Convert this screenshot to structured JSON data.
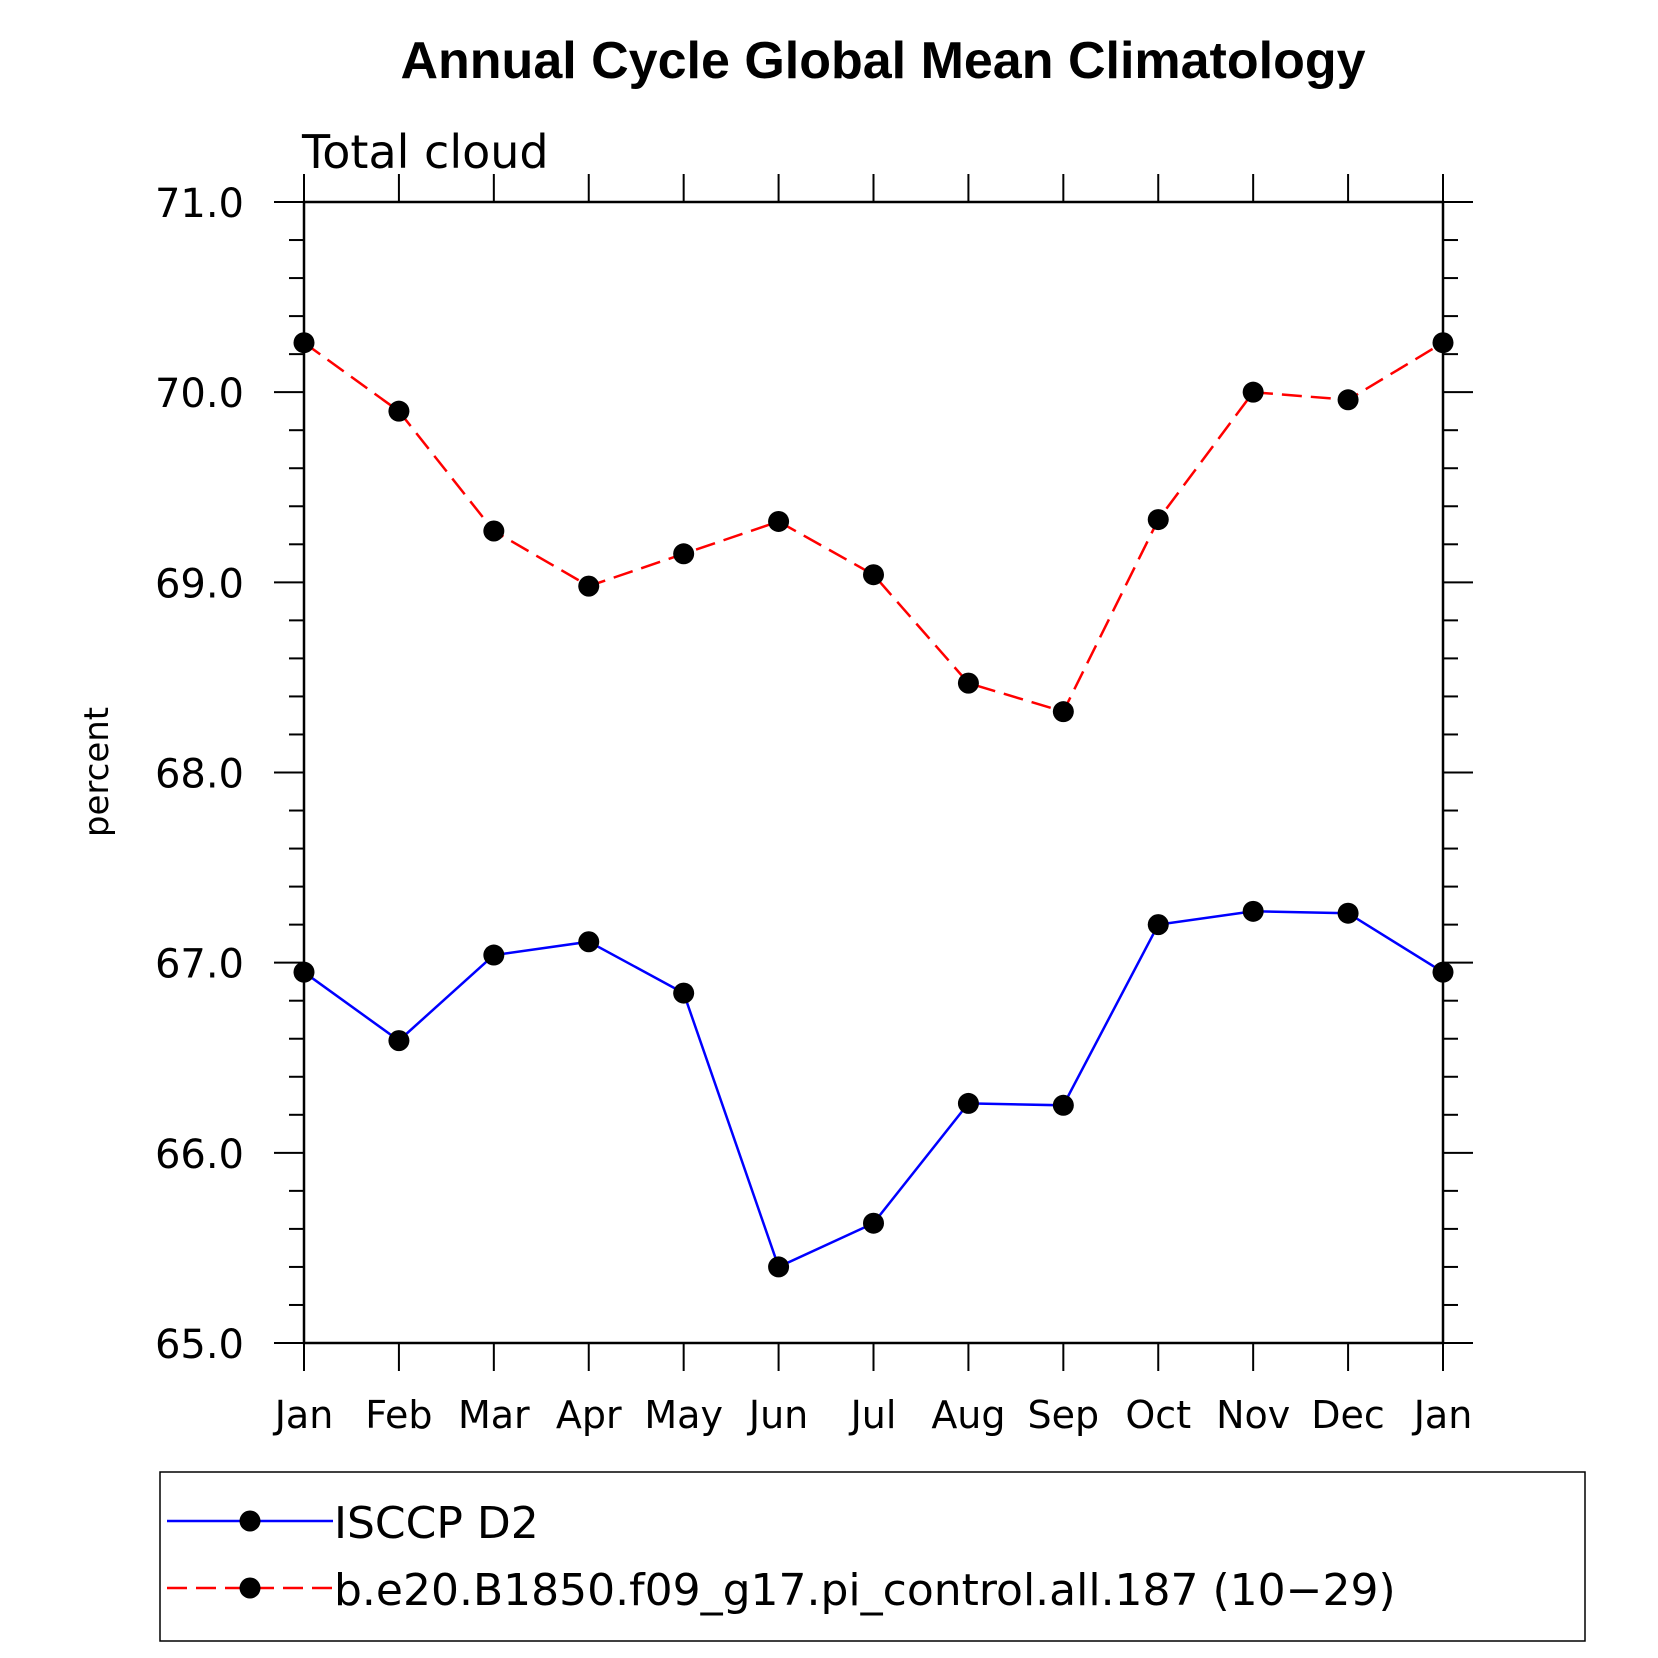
{
  "chart_data": {
    "type": "line",
    "title": "Annual Cycle Global Mean Climatology",
    "subtitle": "Total cloud",
    "xlabel": "",
    "ylabel": "percent",
    "categories": [
      "Jan",
      "Feb",
      "Mar",
      "Apr",
      "May",
      "Jun",
      "Jul",
      "Aug",
      "Sep",
      "Oct",
      "Nov",
      "Dec",
      "Jan"
    ],
    "ylim": [
      65.0,
      71.0
    ],
    "yticks": [
      "65.0",
      "66.0",
      "67.0",
      "68.0",
      "69.0",
      "70.0",
      "71.0"
    ],
    "series": [
      {
        "name": "ISCCP D2",
        "color": "#0000ff",
        "dash": "solid",
        "values": [
          66.95,
          66.59,
          67.04,
          67.11,
          66.84,
          65.4,
          65.63,
          66.26,
          66.25,
          67.2,
          67.27,
          67.26,
          66.95
        ]
      },
      {
        "name": "b.e20.B1850.f09_g17.pi_control.all.187 (10−29)",
        "color": "#ff0000",
        "dash": "dashed",
        "values": [
          70.26,
          69.9,
          69.27,
          68.98,
          69.15,
          69.32,
          69.04,
          68.47,
          68.32,
          69.33,
          70.0,
          69.96,
          70.26
        ]
      }
    ],
    "legend": "bottom"
  }
}
